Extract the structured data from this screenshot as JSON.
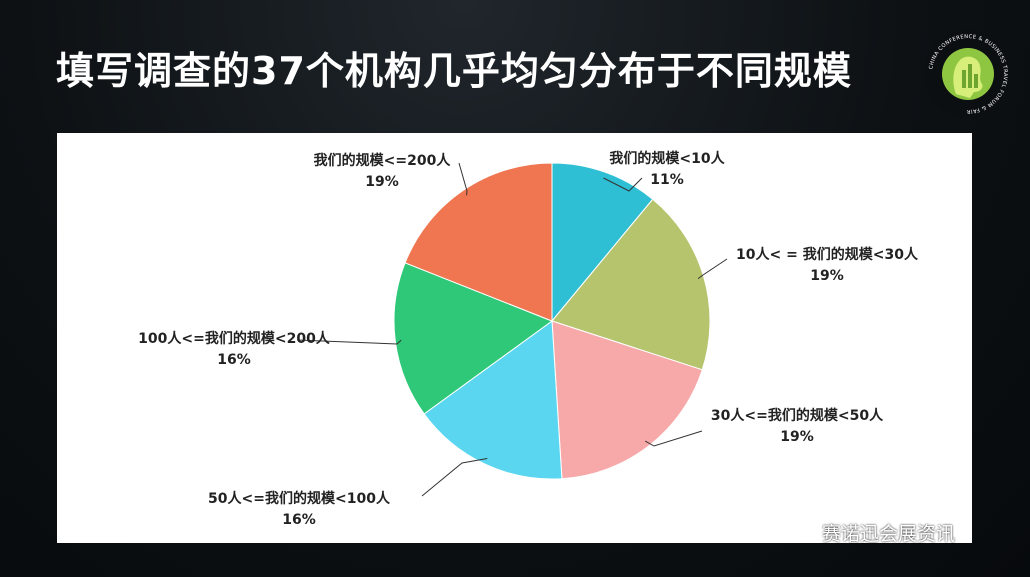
{
  "slide": {
    "title": "填写调查的37个机构几乎均匀分布于不同规模",
    "logo_text": "CHINA CONFERENCE & BUSINESS TRAVEL FORUM & FAIR",
    "watermark": "赛诺迅会展资讯",
    "watermark_icon": "wechat-icon"
  },
  "chart_data": {
    "type": "pie",
    "title": "",
    "start": "12 o'clock, clockwise",
    "slices": [
      {
        "label": "我们的规模<10人",
        "percent_label": "11%",
        "value": 11,
        "color": "#2fbfd4"
      },
      {
        "label": "10人< = 我们的规模<30人",
        "percent_label": "19%",
        "value": 19,
        "color": "#b6c46e"
      },
      {
        "label": "30人<=我们的规模<50人",
        "percent_label": "19%",
        "value": 19,
        "color": "#f7a9a9"
      },
      {
        "label": "50人<=我们的规模<100人",
        "percent_label": "16%",
        "value": 16,
        "color": "#5ad6f0"
      },
      {
        "label": "100人<=我们的规模<200人",
        "percent_label": "16%",
        "value": 16,
        "color": "#2ec878"
      },
      {
        "label": "我们的规模<=200人",
        "percent_label": "19%",
        "value": 19,
        "color": "#ef7650"
      }
    ]
  }
}
